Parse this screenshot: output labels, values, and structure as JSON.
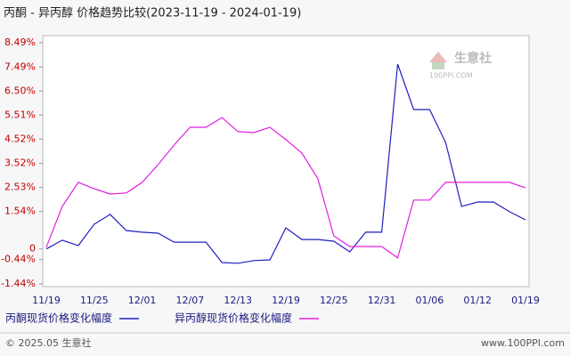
{
  "chart_data": {
    "type": "line",
    "title": "丙酮 - 异丙醇 价格趋势比较(2023-11-19 - 2024-01-19)",
    "categories": [
      "11/19",
      null,
      null,
      "11/25",
      null,
      null,
      "12/01",
      null,
      null,
      "12/07",
      null,
      null,
      "12/13",
      null,
      null,
      "12/19",
      null,
      null,
      "12/25",
      null,
      null,
      "12/31",
      null,
      null,
      "01/06",
      null,
      null,
      "01/12",
      null,
      null,
      "01/19"
    ],
    "series": [
      {
        "name": "丙酮现货价格变化幅度",
        "color": "#1f1fbf",
        "values": [
          0.0,
          0.36,
          0.14,
          1.02,
          1.42,
          0.76,
          0.69,
          0.65,
          0.28,
          0.28,
          0.28,
          -0.56,
          -0.59,
          -0.48,
          -0.45,
          0.87,
          0.39,
          0.39,
          0.32,
          -0.12,
          0.69,
          0.69,
          7.61,
          5.74,
          5.74,
          4.39,
          1.75,
          1.93,
          1.93,
          1.53,
          1.2
        ]
      },
      {
        "name": "异丙醇现货价格变化幅度",
        "color": "#e020e0",
        "values": [
          0.07,
          1.75,
          2.74,
          2.48,
          2.26,
          2.3,
          2.74,
          3.47,
          4.28,
          5.01,
          5.01,
          5.41,
          4.83,
          4.79,
          5.01,
          4.5,
          3.95,
          2.89,
          0.54,
          0.1,
          0.1,
          0.1,
          -0.37,
          2.01,
          2.01,
          2.74,
          2.74,
          2.74,
          2.74,
          2.74,
          2.52
        ]
      }
    ],
    "ylim": [
      -1.44,
      8.49
    ],
    "yticks": [
      {
        "value": 8.49,
        "label": "8.49%"
      },
      {
        "value": 7.49,
        "label": "7.49%"
      },
      {
        "value": 6.5,
        "label": "6.50%"
      },
      {
        "value": 5.51,
        "label": "5.51%"
      },
      {
        "value": 4.52,
        "label": "4.52%"
      },
      {
        "value": 3.52,
        "label": "3.52%"
      },
      {
        "value": 2.53,
        "label": "2.53%"
      },
      {
        "value": 1.54,
        "label": "1.54%"
      },
      0,
      {
        "value": -0.44,
        "label": "-0.44%"
      },
      {
        "value": -1.44,
        "label": "-1.44%"
      }
    ],
    "grid": false
  },
  "watermark": {
    "name": "生意社",
    "url": "100PPI.COM"
  },
  "footer": {
    "left": "© 2025.05 生意社",
    "right": "www.100PPI.com"
  }
}
